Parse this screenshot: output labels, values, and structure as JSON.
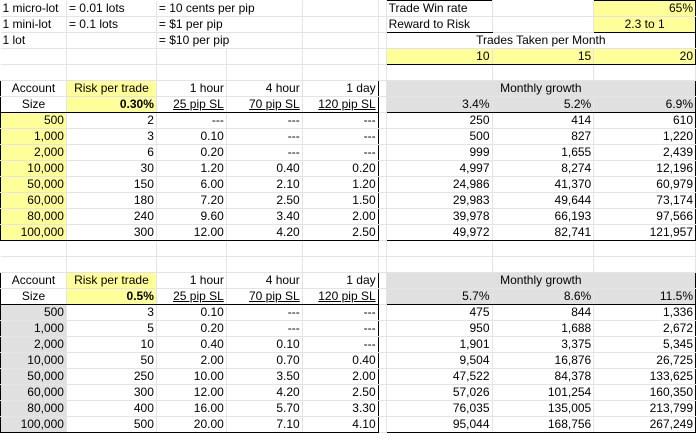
{
  "notes": [
    {
      "a": "1 micro-lot",
      "b": "= 0.01 lots",
      "c": "= 10 cents per pip"
    },
    {
      "a": "1 mini-lot",
      "b": "= 0.1 lots",
      "c": "= $1 per pip"
    },
    {
      "a": "1 lot",
      "b": "",
      "c": "= $10 per pip"
    }
  ],
  "params": {
    "win_rate_label": "Trade Win rate",
    "win_rate": "65%",
    "rr_label": "Reward to Risk",
    "rr": "2.3  to  1",
    "trades_label": "Trades Taken per Month",
    "trades": [
      "10",
      "15",
      "20"
    ]
  },
  "tables": [
    {
      "hdr": {
        "account": "Account",
        "size": "Size",
        "risk": "Risk per trade",
        "risk_pct": "0.30%",
        "h1": "1 hour",
        "h1sl": "25 pip SL",
        "h4": "4 hour",
        "h4sl": "70 pip SL",
        "d1": "1 day",
        "d1sl": "120 pip SL",
        "growth": "Monthly growth",
        "g": [
          "3.4%",
          "5.2%",
          "6.9%"
        ]
      },
      "rows": [
        {
          "size": "500",
          "risk": "2",
          "h1": "---",
          "h4": "---",
          "d1": "---",
          "g": [
            "250",
            "414",
            "610"
          ]
        },
        {
          "size": "1,000",
          "risk": "3",
          "h1": "0.10",
          "h4": "---",
          "d1": "---",
          "g": [
            "500",
            "827",
            "1,220"
          ]
        },
        {
          "size": "2,000",
          "risk": "6",
          "h1": "0.20",
          "h4": "---",
          "d1": "---",
          "g": [
            "999",
            "1,655",
            "2,439"
          ]
        },
        {
          "size": "10,000",
          "risk": "30",
          "h1": "1.20",
          "h4": "0.40",
          "d1": "0.20",
          "g": [
            "4,997",
            "8,274",
            "12,196"
          ]
        },
        {
          "size": "50,000",
          "risk": "150",
          "h1": "6.00",
          "h4": "2.10",
          "d1": "1.20",
          "g": [
            "24,986",
            "41,370",
            "60,979"
          ]
        },
        {
          "size": "60,000",
          "risk": "180",
          "h1": "7.20",
          "h4": "2.50",
          "d1": "1.50",
          "g": [
            "29,983",
            "49,644",
            "73,174"
          ]
        },
        {
          "size": "80,000",
          "risk": "240",
          "h1": "9.60",
          "h4": "3.40",
          "d1": "2.00",
          "g": [
            "39,978",
            "66,193",
            "97,566"
          ]
        },
        {
          "size": "100,000",
          "risk": "300",
          "h1": "12.00",
          "h4": "4.20",
          "d1": "2.50",
          "g": [
            "49,972",
            "82,741",
            "121,957"
          ]
        }
      ]
    },
    {
      "hdr": {
        "account": "Account",
        "size": "Size",
        "risk": "Risk per trade",
        "risk_pct": "0.5%",
        "h1": "1 hour",
        "h1sl": "25 pip SL",
        "h4": "4 hour",
        "h4sl": "70 pip SL",
        "d1": "1 day",
        "d1sl": "120 pip SL",
        "growth": "Monthly growth",
        "g": [
          "5.7%",
          "8.6%",
          "11.5%"
        ]
      },
      "rows": [
        {
          "size": "500",
          "risk": "3",
          "h1": "0.10",
          "h4": "---",
          "d1": "---",
          "g": [
            "475",
            "844",
            "1,336"
          ]
        },
        {
          "size": "1,000",
          "risk": "5",
          "h1": "0.20",
          "h4": "---",
          "d1": "---",
          "g": [
            "950",
            "1,688",
            "2,672"
          ]
        },
        {
          "size": "2,000",
          "risk": "10",
          "h1": "0.40",
          "h4": "0.10",
          "d1": "---",
          "g": [
            "1,901",
            "3,375",
            "5,345"
          ]
        },
        {
          "size": "10,000",
          "risk": "50",
          "h1": "2.00",
          "h4": "0.70",
          "d1": "0.40",
          "g": [
            "9,504",
            "16,876",
            "26,725"
          ]
        },
        {
          "size": "50,000",
          "risk": "250",
          "h1": "10.00",
          "h4": "3.50",
          "d1": "2.00",
          "g": [
            "47,522",
            "84,378",
            "133,625"
          ]
        },
        {
          "size": "60,000",
          "risk": "300",
          "h1": "12.00",
          "h4": "4.20",
          "d1": "2.50",
          "g": [
            "57,026",
            "101,254",
            "160,350"
          ]
        },
        {
          "size": "80,000",
          "risk": "400",
          "h1": "16.00",
          "h4": "5.70",
          "d1": "3.30",
          "g": [
            "76,035",
            "135,005",
            "213,799"
          ]
        },
        {
          "size": "100,000",
          "risk": "500",
          "h1": "20.00",
          "h4": "7.10",
          "d1": "4.10",
          "g": [
            "95,044",
            "168,756",
            "267,249"
          ]
        }
      ]
    }
  ]
}
